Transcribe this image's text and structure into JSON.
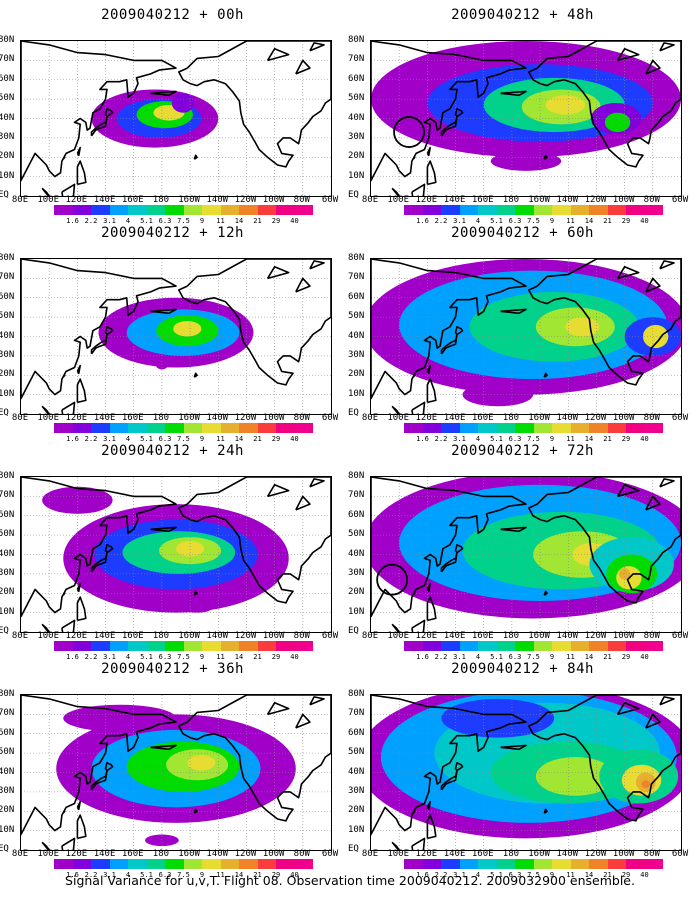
{
  "panels": [
    {
      "title": "2009040212 + 00h",
      "forecast_hour": 0,
      "circle": null
    },
    {
      "title": "2009040212 + 48h",
      "forecast_hour": 48,
      "circle": {
        "lon": 107,
        "lat": 33
      }
    },
    {
      "title": "2009040212 + 12h",
      "forecast_hour": 12,
      "circle": null
    },
    {
      "title": "2009040212 + 60h",
      "forecast_hour": 60,
      "circle": null
    },
    {
      "title": "2009040212 + 24h",
      "forecast_hour": 24,
      "circle": null
    },
    {
      "title": "2009040212 + 72h",
      "forecast_hour": 72,
      "circle": {
        "lon": 95,
        "lat": 27
      }
    },
    {
      "title": "2009040212 + 36h",
      "forecast_hour": 36,
      "circle": null
    },
    {
      "title": "2009040212 + 84h",
      "forecast_hour": 84,
      "circle": null
    }
  ],
  "map": {
    "lon_range_degE": [
      80,
      300
    ],
    "lat_range_degN": [
      0,
      80
    ],
    "x_tick_labels": [
      "80E",
      "100E",
      "120E",
      "140E",
      "160E",
      "180",
      "160W",
      "140W",
      "120W",
      "100W",
      "80W",
      "60W"
    ],
    "y_tick_labels": [
      "EQ",
      "10N",
      "20N",
      "30N",
      "40N",
      "50N",
      "60N",
      "70N",
      "80N"
    ],
    "grid": "dotted"
  },
  "colorbar": {
    "labels": [
      "1.6",
      "2.2",
      "3.1",
      "4",
      "5.1",
      "6.3",
      "7.5",
      "9",
      "11",
      "14",
      "21",
      "29",
      "40"
    ],
    "colors": [
      "#a000c8",
      "#8200dc",
      "#1e3cff",
      "#00a0ff",
      "#00c8c8",
      "#00d28c",
      "#00dc00",
      "#a0e632",
      "#e6dc32",
      "#e6af2d",
      "#f08228",
      "#fa3c3c",
      "#f00082",
      "#f0008c"
    ]
  },
  "caption": "Signal Variance for u,v,T. Flight 08. Observation time 2009040212. 2009032900 ensemble."
}
